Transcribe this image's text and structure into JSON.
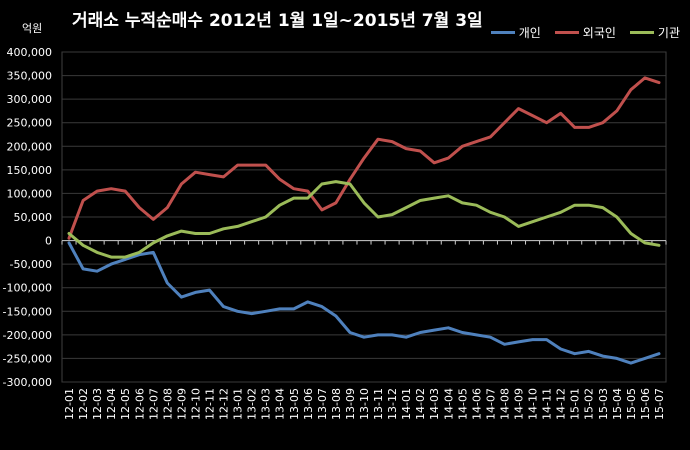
{
  "chart_data": {
    "type": "line",
    "title": "거래소 누적순매수 2012년 1월 1일~2015년 7월 3일",
    "ylabel": "억원",
    "ylim": [
      -300000,
      400000
    ],
    "yticks": [
      400000,
      350000,
      300000,
      250000,
      200000,
      150000,
      100000,
      50000,
      0,
      -50000,
      -100000,
      -150000,
      -200000,
      -250000,
      -300000
    ],
    "ytick_labels": [
      "400,000",
      "350,000",
      "300,000",
      "250,000",
      "200,000",
      "150,000",
      "100,000",
      "50,000",
      "0",
      "-50,000",
      "-100,000",
      "-150,000",
      "-200,000",
      "-250,000",
      "-300,000"
    ],
    "categories": [
      "12-01",
      "12-02",
      "12-03",
      "12-04",
      "12-05",
      "12-06",
      "12-07",
      "12-08",
      "12-09",
      "12-10",
      "12-11",
      "12-12",
      "13-01",
      "13-02",
      "13-03",
      "13-04",
      "13-05",
      "13-06",
      "13-07",
      "13-08",
      "13-09",
      "13-10",
      "13-11",
      "13-12",
      "14-01",
      "14-02",
      "14-03",
      "14-04",
      "14-05",
      "14-06",
      "14-07",
      "14-08",
      "14-09",
      "14-10",
      "14-11",
      "14-12",
      "15-01",
      "15-02",
      "15-03",
      "15-04",
      "15-05",
      "15-06",
      "15-07"
    ],
    "grid": true,
    "legend_position": "top-right",
    "series": [
      {
        "name": "개인",
        "color": "#4f81bd",
        "values": [
          -5000,
          -60000,
          -65000,
          -50000,
          -40000,
          -30000,
          -25000,
          -90000,
          -120000,
          -110000,
          -105000,
          -140000,
          -150000,
          -155000,
          -150000,
          -145000,
          -145000,
          -130000,
          -140000,
          -160000,
          -195000,
          -205000,
          -200000,
          -200000,
          -205000,
          -195000,
          -190000,
          -185000,
          -195000,
          -200000,
          -205000,
          -220000,
          -215000,
          -210000,
          -210000,
          -230000,
          -240000,
          -235000,
          -245000,
          -250000,
          -260000,
          -250000,
          -240000
        ]
      },
      {
        "name": "외국인",
        "color": "#c0504d",
        "values": [
          5000,
          85000,
          105000,
          110000,
          105000,
          70000,
          45000,
          70000,
          120000,
          145000,
          140000,
          135000,
          160000,
          160000,
          160000,
          130000,
          110000,
          105000,
          65000,
          80000,
          130000,
          175000,
          215000,
          210000,
          195000,
          190000,
          165000,
          175000,
          200000,
          210000,
          220000,
          250000,
          280000,
          265000,
          250000,
          270000,
          240000,
          240000,
          250000,
          275000,
          320000,
          345000,
          335000
        ]
      },
      {
        "name": "기관",
        "color": "#9bbb59",
        "values": [
          15000,
          -10000,
          -25000,
          -35000,
          -35000,
          -25000,
          -5000,
          10000,
          20000,
          15000,
          15000,
          25000,
          30000,
          40000,
          50000,
          75000,
          90000,
          90000,
          120000,
          125000,
          120000,
          80000,
          50000,
          55000,
          70000,
          85000,
          90000,
          95000,
          80000,
          75000,
          60000,
          50000,
          30000,
          40000,
          50000,
          60000,
          75000,
          75000,
          70000,
          50000,
          15000,
          -5000,
          -10000
        ]
      }
    ]
  }
}
